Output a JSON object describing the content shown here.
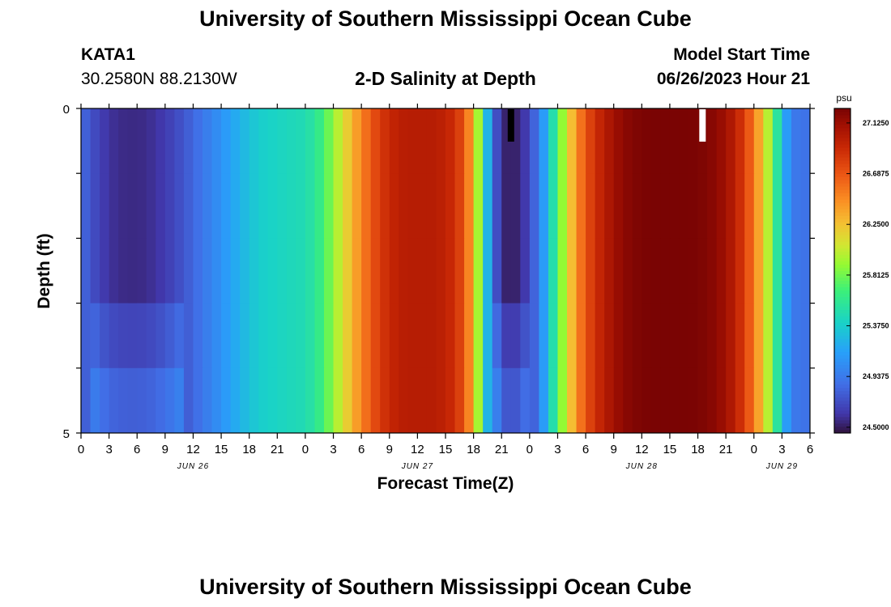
{
  "page": {
    "title_top": "University of Southern Mississippi Ocean Cube",
    "title_bottom": "University of Southern Mississippi Ocean Cube",
    "station": "KATA1",
    "location": "30.2580N  88.2130W",
    "model_start_label": "Model Start Time",
    "model_start_value": "06/26/2023 Hour 21"
  },
  "chart_data": {
    "type": "heatmap",
    "title": "2-D Salinity at Depth",
    "xlabel": "Forecast Time(Z)",
    "ylabel": "Depth (ft)",
    "y_ticks": [
      "0",
      "5"
    ],
    "ylim": [
      0,
      5
    ],
    "x_tick_labels": [
      "0",
      "3",
      "6",
      "9",
      "12",
      "15",
      "18",
      "21",
      "0",
      "3",
      "6",
      "9",
      "12",
      "15",
      "18",
      "21",
      "0",
      "3",
      "6",
      "9",
      "12",
      "15",
      "18",
      "21",
      "0",
      "3",
      "6"
    ],
    "date_labels": [
      {
        "label": "JUN 26",
        "hour": 12
      },
      {
        "label": "JUN 27",
        "hour": 36
      },
      {
        "label": "JUN 28",
        "hour": 60
      },
      {
        "label": "JUN 29",
        "hour": 75
      }
    ],
    "x_hours_range": [
      0,
      78
    ],
    "colorbar": {
      "unit": "psu",
      "min": 24.45,
      "max": 27.25,
      "tick_values": [
        "27.1250",
        "26.6875",
        "26.2500",
        "25.8125",
        "25.3750",
        "24.9375",
        "24.5000"
      ]
    },
    "salinity_profile_hourly": [
      24.86,
      24.75,
      24.66,
      24.6,
      24.57,
      24.56,
      24.56,
      24.57,
      24.6,
      24.64,
      24.7,
      24.76,
      24.84,
      24.92,
      25.0,
      25.08,
      25.16,
      25.24,
      25.31,
      25.37,
      25.4,
      25.42,
      25.44,
      25.46,
      25.48,
      25.56,
      25.7,
      25.9,
      26.1,
      26.3,
      26.5,
      26.68,
      26.82,
      26.92,
      26.98,
      27.0,
      27.0,
      27.0,
      27.0,
      26.96,
      26.88,
      26.7,
      26.3,
      25.6,
      24.9,
      24.55,
      24.5,
      24.55,
      24.7,
      24.95,
      25.3,
      25.7,
      26.1,
      26.45,
      26.7,
      26.88,
      27.0,
      27.1,
      27.18,
      27.22,
      27.24,
      27.25,
      27.25,
      27.25,
      27.25,
      27.25,
      27.24,
      27.22,
      27.18,
      27.1,
      26.98,
      26.8,
      26.55,
      26.2,
      25.8,
      25.3,
      24.95,
      24.9
    ],
    "markers": [
      {
        "hour": 46,
        "color": "#000000"
      },
      {
        "hour": 66.5,
        "color": "#ffffff"
      }
    ]
  }
}
